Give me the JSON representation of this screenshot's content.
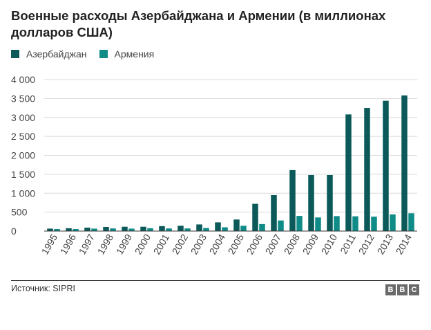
{
  "title": "Военные расходы Азербайджана и Армении (в миллионах долларов США)",
  "source": "Источник: SIPRI",
  "logo": {
    "letters": [
      "B",
      "B",
      "C"
    ],
    "color": "#6a6a6a"
  },
  "colors": {
    "azerbaijan": "#0b5a59",
    "armenia": "#0f8b88",
    "grid": "#d9d9d9",
    "axis": "#333333"
  },
  "chart_data": {
    "type": "bar",
    "title": "Военные расходы Азербайджана и Армении (в миллионах долларов США)",
    "xlabel": "",
    "ylabel": "",
    "legend_placement": "top-left",
    "grid": true,
    "ylim": [
      0,
      4000
    ],
    "yticks": [
      0,
      500,
      1000,
      1500,
      2000,
      2500,
      3000,
      3500,
      4000
    ],
    "ytick_labels": [
      "0",
      "500",
      "1 000",
      "1 500",
      "2 000",
      "2 500",
      "3 000",
      "3 500",
      "4 000"
    ],
    "categories": [
      "1995",
      "1996",
      "1997",
      "1998",
      "1999",
      "2000",
      "2001",
      "2002",
      "2003",
      "2004",
      "2005",
      "2006",
      "2007",
      "2008",
      "2009",
      "2010",
      "2011",
      "2012",
      "2013",
      "2014"
    ],
    "series": [
      {
        "name": "Азербайджан",
        "color": "#0b5a59",
        "values": [
          65,
          75,
          90,
          110,
          115,
          115,
          130,
          140,
          175,
          230,
          305,
          720,
          950,
          1610,
          1480,
          1480,
          3080,
          3250,
          3440,
          3580
        ]
      },
      {
        "name": "Армения",
        "color": "#0f8b88",
        "values": [
          55,
          55,
          65,
          70,
          65,
          75,
          70,
          70,
          80,
          100,
          140,
          185,
          280,
          400,
          360,
          395,
          390,
          380,
          440,
          470
        ]
      }
    ]
  }
}
